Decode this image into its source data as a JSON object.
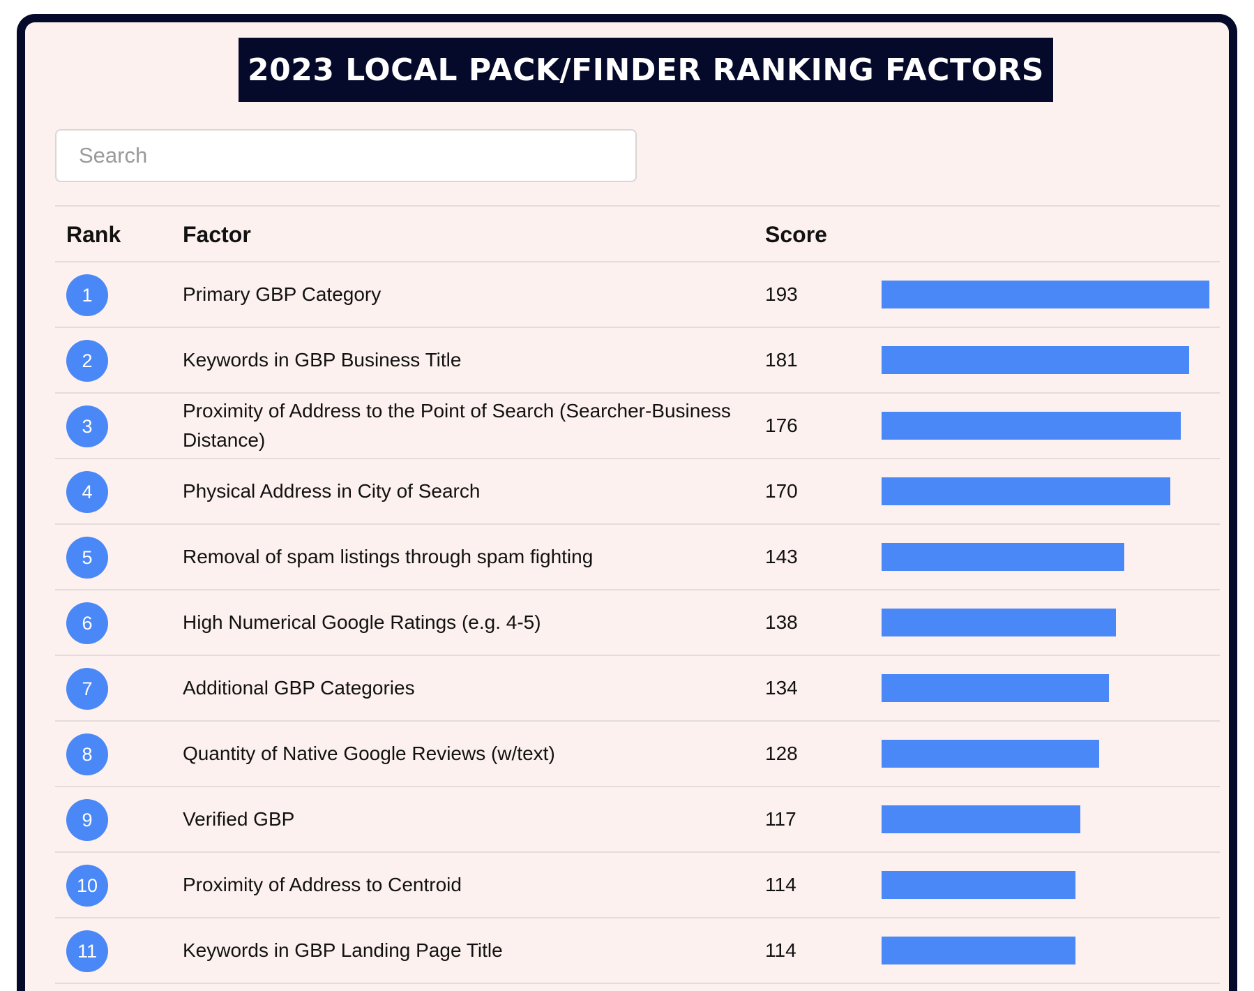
{
  "title": "2023 LOCAL PACK/FINDER RANKING FACTORS",
  "search": {
    "placeholder": "Search",
    "value": ""
  },
  "headers": {
    "rank": "Rank",
    "factor": "Factor",
    "score": "Score"
  },
  "colors": {
    "accent": "#4a87f7",
    "banner": "#05092a",
    "background": "#fcf1ee"
  },
  "rows": [
    {
      "rank": "1",
      "factor": "Primary GBP Category",
      "score": "193"
    },
    {
      "rank": "2",
      "factor": "Keywords in GBP Business Title",
      "score": "181"
    },
    {
      "rank": "3",
      "factor": "Proximity of Address to the Point of Search (Searcher-Business Distance)",
      "score": "176"
    },
    {
      "rank": "4",
      "factor": "Physical Address in City of Search",
      "score": "170"
    },
    {
      "rank": "5",
      "factor": "Removal of spam listings through spam fighting",
      "score": "143"
    },
    {
      "rank": "6",
      "factor": "High Numerical Google Ratings (e.g. 4-5)",
      "score": "138"
    },
    {
      "rank": "7",
      "factor": "Additional GBP Categories",
      "score": "134"
    },
    {
      "rank": "8",
      "factor": "Quantity of Native Google Reviews (w/text)",
      "score": "128"
    },
    {
      "rank": "9",
      "factor": "Verified GBP",
      "score": "117"
    },
    {
      "rank": "10",
      "factor": "Proximity of Address to Centroid",
      "score": "114"
    },
    {
      "rank": "11",
      "factor": "Keywords in GBP Landing Page Title",
      "score": "114"
    }
  ]
}
